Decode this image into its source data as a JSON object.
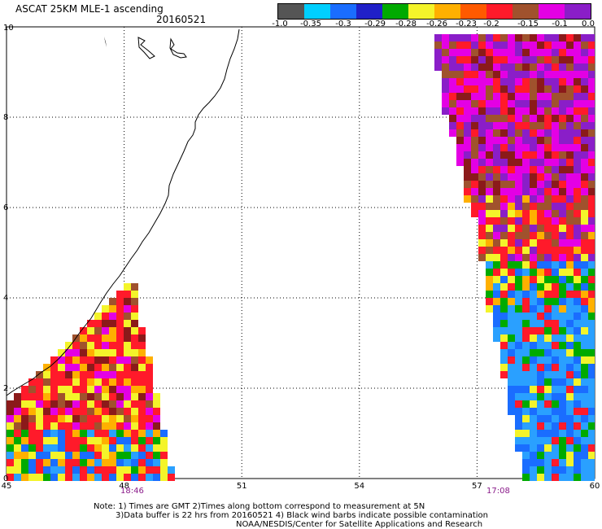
{
  "title": "ASCAT 25KM MLE-1 ascending",
  "date": "20160521",
  "colorbar": {
    "colors": [
      "#555555",
      "#00cfff",
      "#1a6dff",
      "#2020c8",
      "#00aa00",
      "#f4f42a",
      "#ffb000",
      "#ff5a00",
      "#ff1a2a",
      "#a0522d",
      "#e400e4",
      "#8a1ec8"
    ],
    "labels": [
      "-1.0",
      "-0.35",
      "-0.3",
      "-0.29",
      "-0.28",
      "-0.26",
      "-0.23",
      "-0.2",
      "-0.15",
      "-0.1",
      "0.0"
    ]
  },
  "axes": {
    "y_ticks": [
      "10",
      "8",
      "6",
      "4",
      "2",
      "0"
    ],
    "x_ticks": [
      "45",
      "48",
      "51",
      "54",
      "57",
      "60"
    ]
  },
  "pass_times": [
    "18:46",
    "17:08"
  ],
  "notes": {
    "line1": "Note: 1) Times are GMT 2)Times along bottom correspond to measurement at 5N",
    "line2": "3)Data buffer is 22 hrs from 20160521 4) Black wind barbs indicate possible contamination",
    "line3": "NOAA/NESDIS/Center for Satellite Applications and Research"
  },
  "swath_colors": {
    "magenta": "#e400e4",
    "purple": "#8a1ec8",
    "red": "#ff1a2a",
    "orange": "#ffb000",
    "yellow": "#f4f42a",
    "green": "#00aa00",
    "blue": "#1a6dff",
    "sky": "#2aa0ff",
    "brown": "#a0522d",
    "darkred": "#8b1a1a"
  }
}
